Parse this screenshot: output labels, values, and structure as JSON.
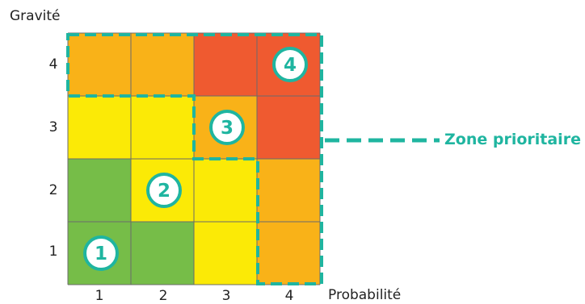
{
  "axes": {
    "y_title": "Gravité",
    "x_title": "Probabilité",
    "x_ticks": [
      "1",
      "2",
      "3",
      "4"
    ],
    "y_ticks": [
      "4",
      "3",
      "2",
      "1"
    ]
  },
  "matrix": {
    "rows": [
      [
        "orange",
        "orange",
        "red",
        "red"
      ],
      [
        "yellow",
        "yellow",
        "orange",
        "red"
      ],
      [
        "green",
        "yellow",
        "yellow",
        "orange"
      ],
      [
        "green",
        "green",
        "yellow",
        "orange"
      ]
    ],
    "colors": {
      "green": "#76bd48",
      "yellow": "#fbea06",
      "orange": "#f9b218",
      "red": "#ef5a30",
      "grid_line": "#6b6b6b",
      "accent": "#1fb5a0"
    },
    "markers": [
      {
        "label": "1",
        "row": 3,
        "col": 0
      },
      {
        "label": "2",
        "row": 2,
        "col": 1
      },
      {
        "label": "3",
        "row": 1,
        "col": 2
      },
      {
        "label": "4",
        "row": 0,
        "col": 3
      }
    ]
  },
  "legend": {
    "zone_label": "Zone prioritaire"
  }
}
